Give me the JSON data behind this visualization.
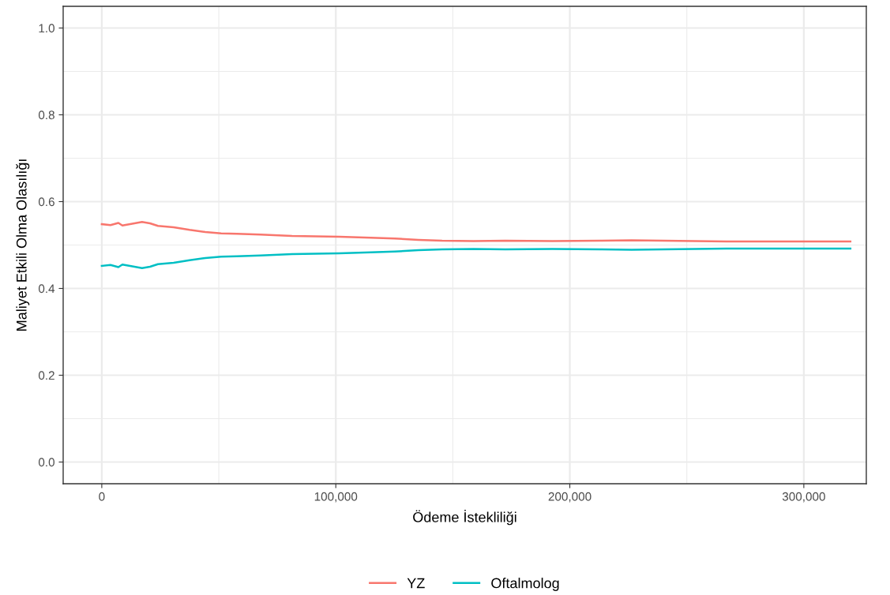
{
  "chart_data": {
    "type": "line",
    "xlabel": "Ödeme İstekliliği",
    "ylabel": "Maliyet Etkili Olma Olasılığı",
    "x": [
      0,
      3700,
      7100,
      8800,
      12100,
      17200,
      20600,
      24000,
      30700,
      37500,
      44200,
      51000,
      57700,
      67800,
      81300,
      91400,
      101500,
      115000,
      125200,
      135300,
      145400,
      158900,
      172400,
      192600,
      212900,
      226400,
      239900,
      253400,
      266900,
      293900,
      319900
    ],
    "series": [
      {
        "name": "YZ",
        "color": "#f8766d",
        "values": [
          0.548,
          0.546,
          0.551,
          0.545,
          0.548,
          0.553,
          0.55,
          0.544,
          0.541,
          0.535,
          0.53,
          0.527,
          0.526,
          0.524,
          0.521,
          0.52,
          0.519,
          0.517,
          0.515,
          0.512,
          0.51,
          0.509,
          0.51,
          0.509,
          0.51,
          0.511,
          0.51,
          0.509,
          0.508,
          0.508,
          0.508
        ]
      },
      {
        "name": "Oftalmolog",
        "color": "#00bfc4",
        "values": [
          0.452,
          0.454,
          0.449,
          0.455,
          0.452,
          0.447,
          0.45,
          0.456,
          0.459,
          0.465,
          0.47,
          0.473,
          0.474,
          0.476,
          0.479,
          0.48,
          0.481,
          0.483,
          0.485,
          0.488,
          0.49,
          0.491,
          0.49,
          0.491,
          0.49,
          0.489,
          0.49,
          0.491,
          0.492,
          0.492,
          0.492
        ]
      }
    ],
    "xlim": [
      -16500,
      326700
    ],
    "ylim": [
      -0.05,
      1.05
    ],
    "xticks": [
      {
        "value": 0,
        "label": "0"
      },
      {
        "value": 100000,
        "label": "100,000"
      },
      {
        "value": 200000,
        "label": "200,000"
      },
      {
        "value": 300000,
        "label": "300,000"
      }
    ],
    "yticks": [
      {
        "value": 0,
        "label": "0.0"
      },
      {
        "value": 0.2,
        "label": "0.2"
      },
      {
        "value": 0.4,
        "label": "0.4"
      },
      {
        "value": 0.6,
        "label": "0.6"
      },
      {
        "value": 0.8,
        "label": "0.8"
      },
      {
        "value": 1.0,
        "label": "1.0"
      }
    ],
    "grid": true,
    "legend": "bottom"
  }
}
